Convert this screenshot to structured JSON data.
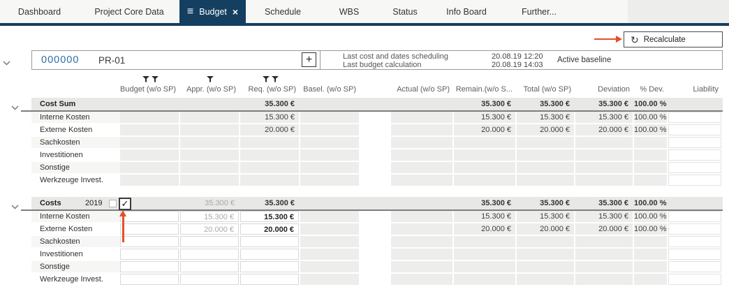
{
  "colors": {
    "accent": "#143f60",
    "annotation": "#e2512b"
  },
  "icons": {
    "menu": "hamburger-icon",
    "close": "close-icon",
    "refresh": "refresh-icon",
    "filter": "funnel-icon",
    "collapse": "chevron-down-icon",
    "add": "plus-icon",
    "check": "checkmark-icon"
  },
  "tabs": [
    {
      "label": "Dashboard",
      "active": false
    },
    {
      "label": "Project Core Data",
      "active": false
    },
    {
      "label": "Budget",
      "active": true
    },
    {
      "label": "Schedule",
      "active": false
    },
    {
      "label": "WBS",
      "active": false
    },
    {
      "label": "Status",
      "active": false
    },
    {
      "label": "Info Board",
      "active": false
    },
    {
      "label": "Further...",
      "active": false
    }
  ],
  "toolbar": {
    "recalculate_label": "Recalculate"
  },
  "project": {
    "number": "000000",
    "code": "PR-01",
    "info_rows": [
      {
        "label": "Last cost and dates scheduling",
        "date": "20.08.19",
        "time": "12:20"
      },
      {
        "label": "Last budget calculation",
        "date": "20.08.19",
        "time": "14:03"
      }
    ],
    "baseline": "Active baseline"
  },
  "table": {
    "columns": [
      {
        "key": "budget",
        "label": "Budget (w/o SP)",
        "filters": 2
      },
      {
        "key": "appr",
        "label": "Appr. (w/o SP)",
        "filters": 1
      },
      {
        "key": "req",
        "label": "Req. (w/o SP)",
        "filters": 2
      },
      {
        "key": "basel",
        "label": "Basel. (w/o SP)",
        "filters": 0
      },
      {
        "key": "actual",
        "label": "Actual (w/o SP)",
        "filters": 0
      },
      {
        "key": "remain",
        "label": "Remain.(w/o S...",
        "filters": 0
      },
      {
        "key": "total",
        "label": "Total (w/o SP)",
        "filters": 0
      },
      {
        "key": "deviation",
        "label": "Deviation",
        "filters": 0
      },
      {
        "key": "pdev",
        "label": "% Dev.",
        "filters": 0
      },
      {
        "key": "liability",
        "label": "Liability",
        "filters": 0
      }
    ],
    "blocks": [
      {
        "title": "Cost Sum",
        "year": null,
        "editable": false,
        "summary": {
          "req": "35.300 €",
          "remain": "35.300 €",
          "total": "35.300 €",
          "deviation": "35.300 €",
          "pdev": "100.00 %"
        },
        "rows": [
          {
            "label": "Interne Kosten",
            "req": "15.300 €",
            "remain": "15.300 €",
            "total": "15.300 €",
            "deviation": "15.300 €",
            "pdev": "100.00 %"
          },
          {
            "label": "Externe Kosten",
            "req": "20.000 €",
            "remain": "20.000 €",
            "total": "20.000 €",
            "deviation": "20.000 €",
            "pdev": "100.00 %"
          },
          {
            "label": "Sachkosten"
          },
          {
            "label": "Investitionen"
          },
          {
            "label": "Sonstige"
          },
          {
            "label": "Werkzeuge Invest."
          }
        ]
      },
      {
        "title": "Costs",
        "year": "2019",
        "editable": true,
        "year_checkbox_checked": false,
        "confirm_checkbox_checked": true,
        "summary": {
          "appr": "35.300 €",
          "req": "35.300 €",
          "remain": "35.300 €",
          "total": "35.300 €",
          "deviation": "35.300 €",
          "pdev": "100.00 %"
        },
        "rows": [
          {
            "label": "Interne Kosten",
            "appr": "15.300 €",
            "req": "15.300 €",
            "remain": "15.300 €",
            "total": "15.300 €",
            "deviation": "15.300 €",
            "pdev": "100.00 %"
          },
          {
            "label": "Externe Kosten",
            "appr": "20.000 €",
            "req": "20.000 €",
            "remain": "20.000 €",
            "total": "20.000 €",
            "deviation": "20.000 €",
            "pdev": "100.00 %"
          },
          {
            "label": "Sachkosten"
          },
          {
            "label": "Investitionen"
          },
          {
            "label": "Sonstige"
          },
          {
            "label": "Werkzeuge Invest."
          }
        ]
      }
    ]
  }
}
